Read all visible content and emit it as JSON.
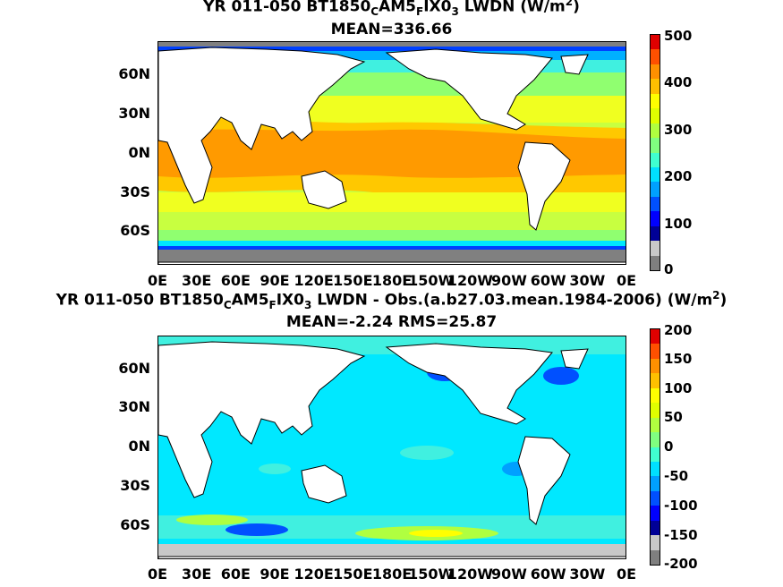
{
  "panel_top": {
    "title_line1": {
      "pre": "YR 011-050 BT1850",
      "s1": "C",
      "mid1": "AM5",
      "s2": "F",
      "mid2": "IX0",
      "s3": "3",
      "post": " LWDN (W/m",
      "sup": "2",
      "end": ")"
    },
    "title_line2": "MEAN=336.66",
    "lat_labels": [
      "60N",
      "30N",
      "0N",
      "30S",
      "60S"
    ],
    "lon_labels": [
      "0E",
      "30E",
      "60E",
      "90E",
      "120E",
      "150E",
      "180E",
      "150W",
      "120W",
      "90W",
      "60W",
      "30W",
      "0E"
    ],
    "colorbar_ticks": [
      "500",
      "400",
      "300",
      "200",
      "100",
      "0"
    ],
    "colors": [
      "#7f7f7f",
      "#c8c8c8",
      "#000096",
      "#0000ff",
      "#0050ff",
      "#00a0ff",
      "#00e0ff",
      "#40ffd0",
      "#80ff80",
      "#b0ff40",
      "#e0ff00",
      "#ffff00",
      "#ffc000",
      "#ff9000",
      "#ff5000",
      "#e00000"
    ]
  },
  "panel_bottom": {
    "title_line1": {
      "pre": "YR 011-050 BT1850",
      "s1": "C",
      "mid1": "AM5",
      "s2": "F",
      "mid2": "IX0",
      "s3": "3",
      "post": " LWDN - Obs.(a.b27.03.mean.1984-2006) (W/m",
      "sup": "2",
      "end": ")"
    },
    "title_line2": "MEAN=-2.24 RMS=25.87",
    "lat_labels": [
      "60N",
      "30N",
      "0N",
      "30S",
      "60S"
    ],
    "lon_labels": [
      "0E",
      "30E",
      "60E",
      "90E",
      "120E",
      "150E",
      "180E",
      "150W",
      "120W",
      "90W",
      "60W",
      "30W",
      "0E"
    ],
    "colorbar_ticks": [
      "200",
      "150",
      "100",
      "50",
      "0",
      "-50",
      "-100",
      "-150",
      "-200"
    ],
    "colors": [
      "#7f7f7f",
      "#c8c8c8",
      "#000096",
      "#0000ff",
      "#0050ff",
      "#00a0ff",
      "#00e0ff",
      "#40ffd0",
      "#80ff80",
      "#b0ff40",
      "#e0ff00",
      "#ffff00",
      "#ffc000",
      "#ff9000",
      "#ff5000",
      "#e00000"
    ]
  },
  "ocean_colors": {
    "orange": "#ff9a00",
    "lightorange": "#ffc800",
    "yellow": "#f0ff20",
    "yellowgreen": "#c8ff40",
    "green": "#90ff70",
    "cyan": "#00e8ff",
    "lightblue": "#00b0ff",
    "blue": "#0040ff",
    "navy": "#0000a0",
    "gray": "#808080",
    "aqua": "#40f0e0",
    "land": "#ffffff"
  }
}
